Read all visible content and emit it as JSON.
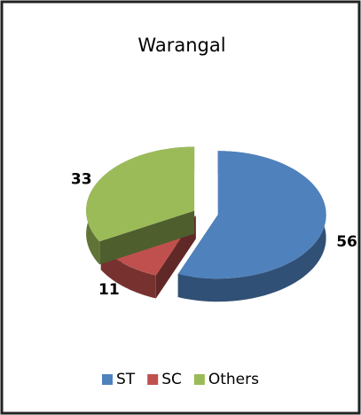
{
  "chart_data": {
    "type": "pie",
    "title": "Warangal",
    "categories": [
      "ST",
      "SC",
      "Others"
    ],
    "values": [
      56,
      11,
      33
    ],
    "colors": [
      "#4f81bd",
      "#c0504d",
      "#9bbb59"
    ],
    "legend": "bottom"
  }
}
